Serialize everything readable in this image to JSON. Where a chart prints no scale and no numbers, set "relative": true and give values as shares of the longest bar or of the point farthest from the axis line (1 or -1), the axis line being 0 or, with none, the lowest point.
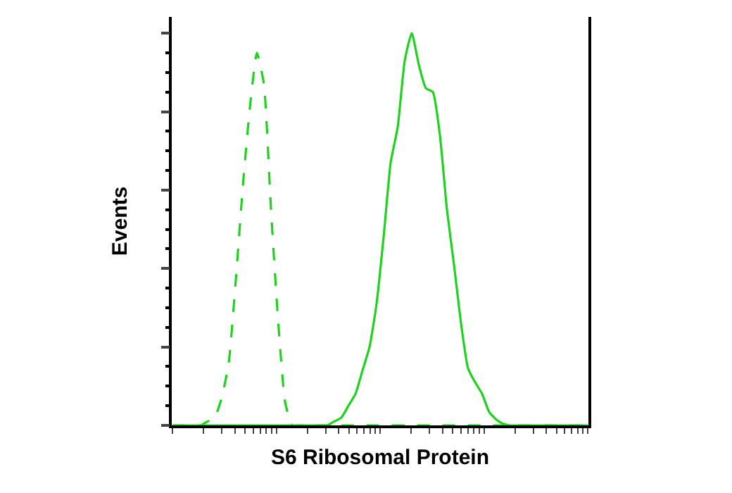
{
  "chart_data": {
    "type": "line",
    "relative": true,
    "xlabel": "S6 Ribosomal Protein",
    "ylabel": "Events",
    "tick_labels": false,
    "marker": "none",
    "categories": [
      null,
      null,
      null,
      null,
      null,
      null,
      null,
      null,
      null,
      null,
      null,
      null,
      null,
      null,
      null,
      null,
      null,
      null,
      null,
      null,
      null,
      null,
      null,
      null,
      null,
      null,
      null,
      null,
      null,
      null,
      null,
      null,
      null,
      null,
      null,
      null,
      null,
      null,
      null,
      null,
      null,
      null,
      null,
      null,
      null,
      null,
      null,
      null,
      null,
      null,
      null,
      null,
      null,
      null,
      null,
      null,
      null,
      null,
      null,
      null
    ],
    "series": [
      {
        "color": "#1ed31e",
        "line_style": "dashed",
        "values": [
          0,
          0,
          0,
          0,
          0,
          0.01,
          0.02,
          0.07,
          0.16,
          0.37,
          0.61,
          0.81,
          0.95,
          0.87,
          0.55,
          0.27,
          0.06,
          0,
          0,
          0,
          0,
          0,
          0,
          0,
          0,
          0,
          0,
          0,
          0,
          0,
          0,
          0,
          0,
          0,
          0,
          0,
          0,
          0,
          0,
          0,
          0,
          0,
          0,
          0,
          0,
          0,
          0,
          0,
          0,
          0,
          0,
          0,
          0,
          0,
          0,
          0,
          0,
          0,
          0,
          0
        ]
      },
      {
        "color": "#1ed31e",
        "line_style": "solid",
        "values": [
          0,
          0,
          0,
          0,
          0,
          0,
          0,
          0,
          0,
          0,
          0,
          0,
          0,
          0,
          0,
          0,
          0,
          0,
          0,
          0,
          0,
          0,
          0,
          0.01,
          0.02,
          0.05,
          0.08,
          0.14,
          0.2,
          0.31,
          0.48,
          0.67,
          0.76,
          0.93,
          1.0,
          0.92,
          0.86,
          0.85,
          0.74,
          0.55,
          0.41,
          0.26,
          0.145,
          0.11,
          0.08,
          0.034,
          0.015,
          0.004,
          0,
          0,
          0,
          0,
          0,
          0,
          0,
          0,
          0,
          0,
          0,
          0
        ]
      }
    ]
  }
}
